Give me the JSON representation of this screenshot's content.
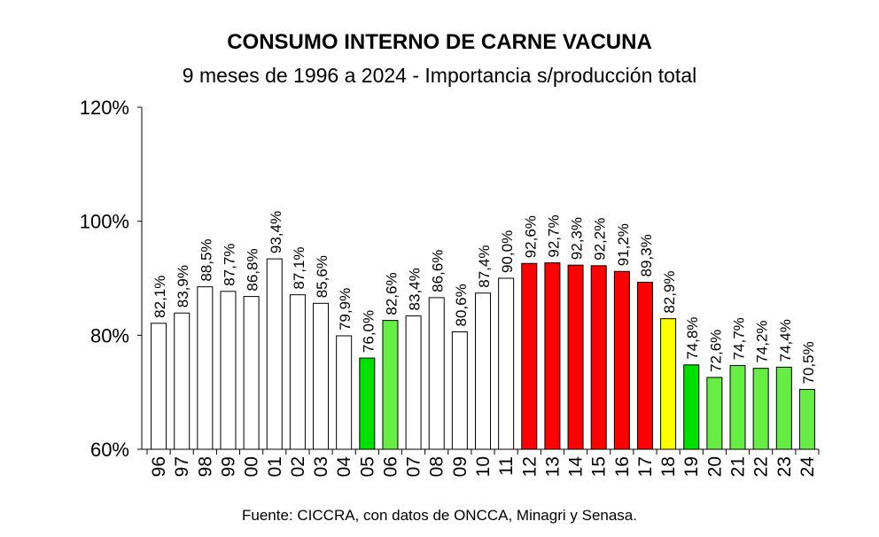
{
  "chart_data": {
    "type": "bar",
    "title": "CONSUMO INTERNO DE CARNE VACUNA",
    "subtitle": "9 meses de 1996 a 2024 - Importancia s/producción total",
    "source": "Fuente: CICCRA, con datos de ONCCA, Minagri y Senasa.",
    "xlabel": "",
    "ylabel": "",
    "ylim": [
      60,
      120
    ],
    "yticks": [
      60,
      80,
      100,
      120
    ],
    "ytick_labels": [
      "60%",
      "80%",
      "100%",
      "120%"
    ],
    "categories": [
      "96",
      "97",
      "98",
      "99",
      "00",
      "01",
      "02",
      "03",
      "04",
      "05",
      "06",
      "07",
      "08",
      "09",
      "10",
      "11",
      "12",
      "13",
      "14",
      "15",
      "16",
      "17",
      "18",
      "19",
      "20",
      "21",
      "22",
      "23",
      "24"
    ],
    "values": [
      82.1,
      83.9,
      88.5,
      87.7,
      86.8,
      93.4,
      87.1,
      85.6,
      79.9,
      76.0,
      82.6,
      83.4,
      86.6,
      80.6,
      87.4,
      90.0,
      92.6,
      92.7,
      92.3,
      92.2,
      91.2,
      89.3,
      82.9,
      74.8,
      72.6,
      74.7,
      74.2,
      74.4,
      70.5
    ],
    "value_labels": [
      "82,1%",
      "83,9%",
      "88,5%",
      "87,7%",
      "86,8%",
      "93,4%",
      "87,1%",
      "85,6%",
      "79,9%",
      "76,0%",
      "82,6%",
      "83,4%",
      "86,6%",
      "80,6%",
      "87,4%",
      "90,0%",
      "92,6%",
      "92,7%",
      "92,3%",
      "92,2%",
      "91,2%",
      "89,3%",
      "82,9%",
      "74,8%",
      "72,6%",
      "74,7%",
      "74,2%",
      "74,4%",
      "70,5%"
    ],
    "bar_colors": [
      "#ffffff",
      "#ffffff",
      "#ffffff",
      "#ffffff",
      "#ffffff",
      "#ffffff",
      "#ffffff",
      "#ffffff",
      "#ffffff",
      "#00e000",
      "#66ee44",
      "#ffffff",
      "#ffffff",
      "#ffffff",
      "#ffffff",
      "#ffffff",
      "#ff0000",
      "#ff0000",
      "#ff0000",
      "#ff0000",
      "#ff0000",
      "#ff0000",
      "#ffff00",
      "#00e000",
      "#66ee44",
      "#66ee44",
      "#66ee44",
      "#66ee44",
      "#66ee44"
    ],
    "grid": false
  }
}
